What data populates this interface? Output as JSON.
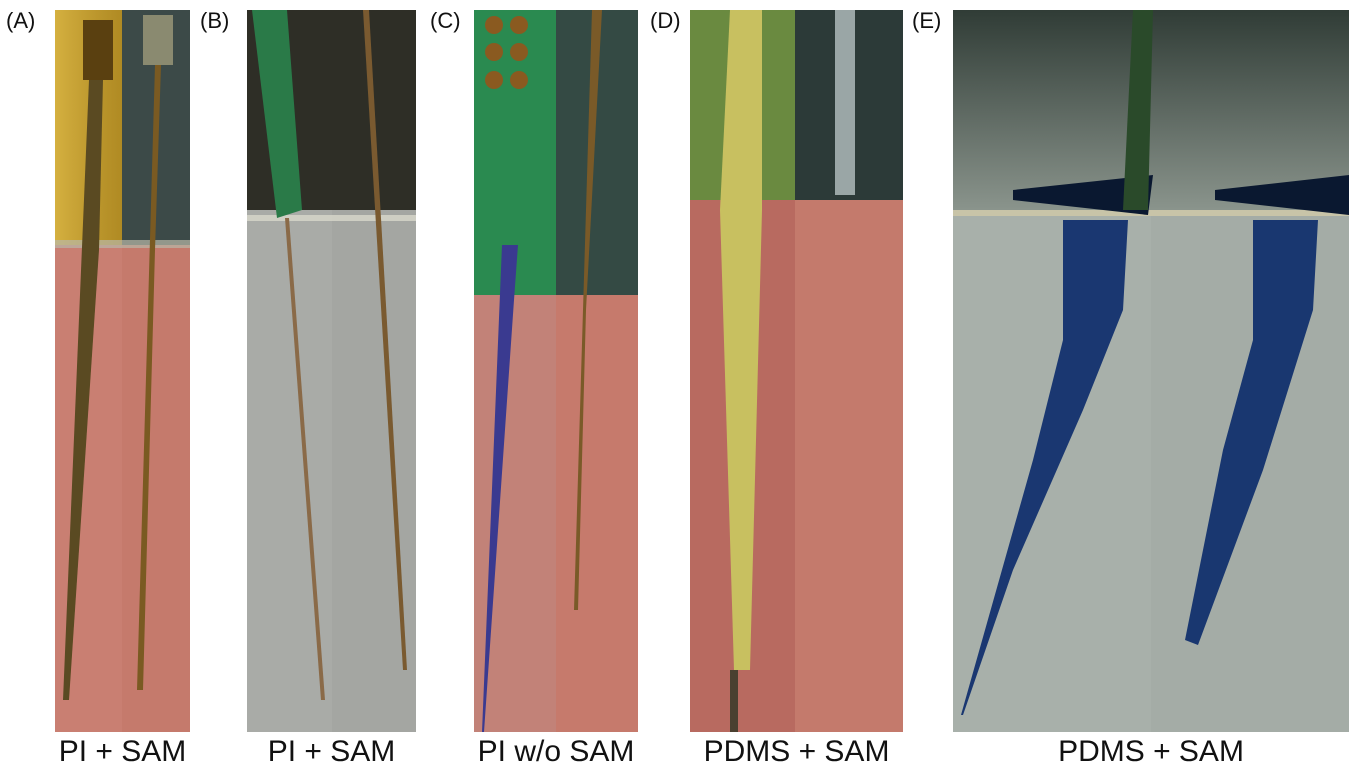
{
  "panels": [
    {
      "label": "(A)",
      "caption": "PI + SAM"
    },
    {
      "label": "(B)",
      "caption": "PI + SAM"
    },
    {
      "label": "(C)",
      "caption": "PI w/o SAM"
    },
    {
      "label": "(D)",
      "caption": "PDMS + SAM"
    },
    {
      "label": "(E)",
      "caption": "PDMS + SAM"
    }
  ]
}
